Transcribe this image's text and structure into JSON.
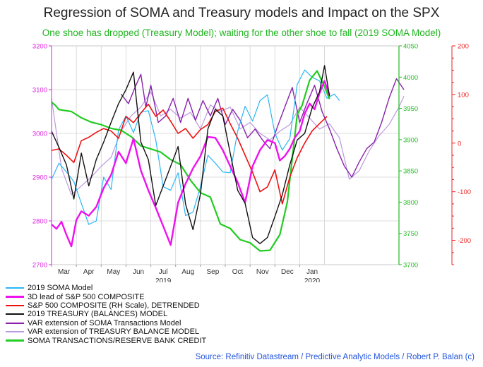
{
  "title": "Regression of SOMA and Treasury models and Impact on the SPX",
  "subtitle": "One shoe has dropped (Treasury Model); waiting for the other shoe to fall (2019 SOMA Model)",
  "source": "Source: Refinitiv Datastream / Predictive Analytic Models / Robert P. Balan (c)",
  "colors": {
    "subtitle": "#22b522",
    "source": "#2255dd",
    "left_axis": "#dd22dd",
    "mid_axis": "#22bb22",
    "right_axis": "#ee2222",
    "grid": "#d2d2d2"
  },
  "chart_data": {
    "type": "line",
    "x_labels": [
      "Mar",
      "Apr",
      "May",
      "Jun",
      "Jul",
      "Aug",
      "Sep",
      "Oct",
      "Nov",
      "Dec",
      "Jan"
    ],
    "x_sublabels": [
      {
        "after": "Jul",
        "text": "2019"
      },
      {
        "after": "Jan",
        "text": "2020"
      }
    ],
    "x_range": [
      0,
      14
    ],
    "axes": {
      "left": {
        "min": 2700,
        "max": 3200,
        "ticks": [
          2700,
          2800,
          2900,
          3000,
          3100,
          3200
        ]
      },
      "mid": {
        "min": 3700,
        "max": 4050,
        "ticks": [
          3700,
          3750,
          3800,
          3850,
          3900,
          3950,
          4000,
          4050
        ]
      },
      "right": {
        "min": -250,
        "max": 200,
        "ticks": [
          -200,
          -100,
          0,
          100,
          200
        ]
      }
    },
    "series": [
      {
        "name": "2019 SOMA Model",
        "color": "#29b6f6",
        "axis": "left",
        "width": 1.2,
        "x": [
          0,
          0.3,
          0.6,
          0.9,
          1.2,
          1.5,
          1.8,
          2.1,
          2.4,
          2.7,
          3.0,
          3.3,
          3.6,
          3.9,
          4.2,
          4.5,
          4.8,
          5.1,
          5.4,
          5.7,
          6.0,
          6.3,
          6.6,
          6.9,
          7.2,
          7.5,
          7.8,
          8.1,
          8.4,
          8.7,
          9.0,
          9.3,
          9.6,
          9.9,
          10.2,
          10.5,
          10.8,
          11.1,
          11.4,
          11.6
        ],
        "y": [
          2895,
          2932,
          2912,
          2890,
          2840,
          2792,
          2800,
          2900,
          2872,
          3008,
          3040,
          3002,
          3048,
          3052,
          2985,
          2878,
          2870,
          2910,
          2812,
          2820,
          2878,
          2950,
          2932,
          2912,
          2910,
          3005,
          3062,
          3028,
          3075,
          3088,
          3000,
          2962,
          2988,
          3112,
          3145,
          3128,
          3120,
          3080,
          3090,
          3075
        ]
      },
      {
        "name": "3D lead of S&P 500 COMPOSITE",
        "color": "#ee11ee",
        "axis": "left",
        "width": 2.4,
        "x": [
          0,
          0.2,
          0.4,
          0.6,
          0.8,
          1.0,
          1.2,
          1.5,
          1.8,
          2.1,
          2.4,
          2.7,
          3.0,
          3.3,
          3.6,
          3.9,
          4.2,
          4.5,
          4.8,
          5.1,
          5.4,
          5.7,
          6.0,
          6.3,
          6.6,
          6.9,
          7.2,
          7.5,
          7.8,
          8.1,
          8.4,
          8.7,
          9.0,
          9.2,
          9.4,
          9.6,
          9.8,
          10.0,
          10.2,
          10.4,
          10.6,
          10.8,
          11.0,
          11.2
        ],
        "y": [
          2792,
          2782,
          2798,
          2768,
          2742,
          2802,
          2822,
          2812,
          2832,
          2875,
          2905,
          2958,
          2932,
          2988,
          2915,
          2870,
          2830,
          2788,
          2745,
          2842,
          2885,
          2920,
          2948,
          2992,
          2990,
          2962,
          2925,
          2888,
          2842,
          2925,
          2962,
          2985,
          2978,
          2938,
          2948,
          2965,
          2990,
          3005,
          3045,
          3068,
          3055,
          3092,
          3120,
          3088
        ]
      },
      {
        "name": "S&P 500 COMPOSITE (RH Scale), DETRENDED",
        "color": "#ee1111",
        "axis": "right",
        "width": 1.6,
        "x": [
          0,
          0.3,
          0.6,
          0.9,
          1.2,
          1.5,
          1.8,
          2.1,
          2.4,
          2.7,
          3.0,
          3.3,
          3.6,
          3.9,
          4.2,
          4.5,
          4.8,
          5.1,
          5.4,
          5.7,
          6.0,
          6.3,
          6.6,
          6.9,
          7.2,
          7.5,
          7.8,
          8.1,
          8.4,
          8.7,
          9.0,
          9.3,
          9.6,
          9.9,
          10.2,
          10.5,
          10.8,
          11.1
        ],
        "y": [
          -15,
          -12,
          -25,
          -40,
          5,
          12,
          22,
          30,
          25,
          10,
          55,
          42,
          62,
          80,
          55,
          68,
          45,
          20,
          30,
          10,
          28,
          38,
          65,
          72,
          40,
          10,
          -25,
          -60,
          -100,
          -90,
          -55,
          -125,
          -70,
          -30,
          0,
          25,
          40,
          55
        ]
      },
      {
        "name": "2019 TREASURY (BALANCES) MODEL",
        "color": "#111111",
        "axis": "left",
        "width": 1.4,
        "x": [
          0,
          0.3,
          0.6,
          0.9,
          1.2,
          1.5,
          1.8,
          2.1,
          2.4,
          2.7,
          3.0,
          3.3,
          3.6,
          3.9,
          4.2,
          4.5,
          4.8,
          5.1,
          5.4,
          5.7,
          6.0,
          6.3,
          6.6,
          6.9,
          7.2,
          7.5,
          7.8,
          8.1,
          8.4,
          8.7,
          9.0,
          9.3,
          9.6,
          9.9,
          10.2,
          10.5,
          10.8,
          11.0,
          11.2
        ],
        "y": [
          3005,
          2968,
          2928,
          2850,
          2955,
          2880,
          2940,
          2980,
          3025,
          3068,
          3100,
          3140,
          2980,
          2940,
          2835,
          2880,
          2925,
          2970,
          2838,
          2780,
          2862,
          3010,
          3055,
          3040,
          2955,
          2870,
          2840,
          2762,
          2748,
          2762,
          2810,
          2860,
          2928,
          2985,
          3000,
          3058,
          3095,
          3155,
          3085
        ]
      },
      {
        "name": "VAR extension of SOMA Transactions Model",
        "color": "#8822aa",
        "axis": "left",
        "width": 1.4,
        "x": [
          2.8,
          3.1,
          3.4,
          3.6,
          3.8,
          4.0,
          4.3,
          4.6,
          4.9,
          5.2,
          5.5,
          5.8,
          6.1,
          6.4,
          6.7,
          7.0,
          7.3,
          7.6,
          7.9,
          8.2,
          8.5,
          8.8,
          9.1,
          9.4,
          9.7,
          10.0,
          10.3,
          10.6,
          10.9,
          11.2,
          11.5,
          11.8,
          12.1,
          12.4,
          12.7,
          13.0,
          13.3,
          13.6,
          13.9,
          14.2
        ],
        "y": [
          3090,
          3068,
          3110,
          3135,
          3060,
          3110,
          3025,
          3040,
          3080,
          3025,
          3080,
          3030,
          3075,
          3040,
          3080,
          3020,
          3055,
          3030,
          2990,
          3010,
          2985,
          2965,
          3015,
          3060,
          3105,
          3025,
          3070,
          3110,
          3050,
          3010,
          2965,
          2925,
          2900,
          2935,
          2965,
          2980,
          3025,
          3080,
          3125,
          3100
        ]
      },
      {
        "name": "VAR extension of TREASURY BALANCE MODEL",
        "color": "#bb99dd",
        "axis": "left",
        "width": 1.2,
        "x": [
          0,
          0.4,
          0.8,
          1.2,
          1.6,
          2.0,
          2.4,
          2.8,
          3.2,
          3.6,
          4.0,
          4.4,
          4.8,
          5.2,
          5.6,
          6.0,
          6.4,
          6.8,
          7.2,
          7.6,
          8.0,
          8.4,
          8.8,
          9.2,
          9.6,
          10.0,
          10.4,
          10.8,
          11.2,
          11.6,
          12.0,
          12.4,
          12.8,
          13.2,
          13.6,
          14.0,
          14.2
        ],
        "y": [
          3080,
          2920,
          2860,
          2880,
          2900,
          2925,
          2945,
          3005,
          3040,
          3060,
          3095,
          3040,
          3055,
          3035,
          3048,
          3010,
          3065,
          3050,
          3060,
          3010,
          3025,
          3000,
          2985,
          3005,
          3020,
          3060,
          3035,
          3010,
          3022,
          2990,
          2895,
          2915,
          2960,
          2995,
          3020,
          3060,
          3085
        ]
      },
      {
        "name": "SOMA TRANSACTIONS/RESERVE BANK CREDIT",
        "color": "#22cc22",
        "axis": "mid",
        "width": 2.2,
        "x": [
          0,
          0.15,
          0.3,
          0.8,
          1.2,
          1.6,
          2.0,
          2.4,
          2.8,
          3.2,
          3.6,
          4.0,
          4.4,
          4.8,
          5.2,
          5.6,
          6.0,
          6.4,
          6.8,
          7.2,
          7.6,
          8.0,
          8.4,
          8.8,
          9.2,
          9.5,
          9.7,
          9.9,
          10.1,
          10.4,
          10.7,
          11.0,
          11.2
        ],
        "y": [
          3960,
          3955,
          3948,
          3945,
          3935,
          3928,
          3924,
          3918,
          3915,
          3905,
          3890,
          3885,
          3880,
          3868,
          3860,
          3835,
          3815,
          3808,
          3765,
          3758,
          3740,
          3735,
          3722,
          3723,
          3748,
          3800,
          3870,
          3940,
          3955,
          3995,
          4010,
          3985,
          3965
        ]
      }
    ]
  }
}
